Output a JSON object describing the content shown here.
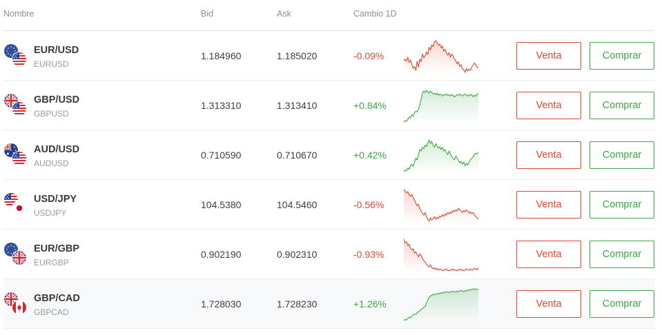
{
  "columns": {
    "name": "Nombre",
    "bid": "Bid",
    "ask": "Ask",
    "change": "Cambio 1D"
  },
  "buttons": {
    "sell": "Venta",
    "buy": "Comprar"
  },
  "colors": {
    "negative": "#e0462e",
    "positive": "#3ba843"
  },
  "rows": [
    {
      "pair": "EUR/USD",
      "symbol": "EURUSD",
      "bid": "1.184960",
      "ask": "1.185020",
      "change": "-0.09%",
      "trend": "down",
      "flags": [
        "eu",
        "us"
      ],
      "spark": [
        50,
        52,
        49,
        55,
        47,
        51,
        44,
        38,
        41,
        35,
        49,
        40,
        52,
        48,
        60,
        54,
        57,
        63,
        59,
        70,
        66,
        74,
        71,
        78,
        80,
        77,
        73,
        75,
        69,
        72,
        64,
        67,
        61,
        58,
        62,
        55,
        60,
        57,
        52,
        50,
        45,
        48,
        41,
        44,
        38,
        36,
        32,
        38,
        34,
        37,
        35,
        40,
        43,
        46,
        44,
        40,
        39
      ]
    },
    {
      "pair": "GBP/USD",
      "symbol": "GBPUSD",
      "bid": "1.313310",
      "ask": "1.313410",
      "change": "+0.84%",
      "trend": "up",
      "flags": [
        "gb",
        "us"
      ],
      "spark": [
        20,
        22,
        21,
        24,
        27,
        26,
        30,
        28,
        33,
        35,
        34,
        38,
        44,
        52,
        60,
        63,
        61,
        64,
        62,
        60,
        63,
        61,
        59,
        60,
        58,
        60,
        57,
        59,
        58,
        56,
        58,
        57,
        59,
        57,
        58,
        56,
        58,
        57,
        55,
        56,
        58,
        57,
        59,
        57,
        56,
        58,
        59,
        57,
        56,
        58,
        57,
        58,
        55,
        57,
        56,
        58,
        60
      ]
    },
    {
      "pair": "AUD/USD",
      "symbol": "AUDUSD",
      "bid": "0.710590",
      "ask": "0.710670",
      "change": "+0.42%",
      "trend": "up",
      "flags": [
        "au",
        "us"
      ],
      "spark": [
        22,
        24,
        23,
        27,
        25,
        30,
        32,
        29,
        35,
        40,
        38,
        45,
        52,
        50,
        55,
        53,
        58,
        56,
        61,
        65,
        60,
        63,
        58,
        55,
        60,
        57,
        54,
        56,
        52,
        55,
        50,
        52,
        48,
        45,
        50,
        46,
        42,
        40,
        38,
        43,
        41,
        37,
        34,
        36,
        32,
        35,
        30,
        33,
        31,
        35,
        38,
        40,
        42,
        45,
        47,
        46,
        48
      ]
    },
    {
      "pair": "USD/JPY",
      "symbol": "USDJPY",
      "bid": "104.5380",
      "ask": "104.5460",
      "change": "-0.56%",
      "trend": "down",
      "flags": [
        "us",
        "jp"
      ],
      "spark": [
        80,
        78,
        75,
        77,
        72,
        70,
        73,
        68,
        65,
        60,
        56,
        58,
        52,
        48,
        45,
        42,
        46,
        40,
        36,
        33,
        38,
        35,
        37,
        40,
        36,
        39,
        37,
        41,
        39,
        43,
        40,
        44,
        42,
        46,
        44,
        47,
        45,
        49,
        47,
        50,
        48,
        52,
        50,
        48,
        46,
        49,
        47,
        50,
        48,
        45,
        47,
        44,
        46,
        43,
        40,
        38,
        36
      ]
    },
    {
      "pair": "EUR/GBP",
      "symbol": "EURGBP",
      "bid": "0.902190",
      "ask": "0.902310",
      "change": "-0.93%",
      "trend": "down",
      "flags": [
        "eu",
        "gb"
      ],
      "spark": [
        80,
        74,
        76,
        70,
        72,
        66,
        63,
        65,
        58,
        60,
        56,
        52,
        57,
        54,
        50,
        46,
        44,
        40,
        38,
        36,
        40,
        35,
        33,
        35,
        32,
        34,
        31,
        33,
        32,
        30,
        32,
        31,
        33,
        31,
        30,
        32,
        31,
        33,
        31,
        32,
        30,
        31,
        33,
        31,
        32,
        30,
        31,
        33,
        32,
        31,
        33,
        31,
        32,
        34,
        33,
        32,
        35
      ]
    },
    {
      "pair": "GBP/CAD",
      "symbol": "GBPCAD",
      "bid": "1.728030",
      "ask": "1.728230",
      "change": "+1.26%",
      "trend": "up",
      "flags": [
        "gb",
        "ca"
      ],
      "spark": [
        20,
        22,
        21,
        24,
        26,
        25,
        28,
        30,
        32,
        31,
        34,
        36,
        38,
        40,
        42,
        44,
        46,
        52,
        58,
        62,
        65,
        66,
        68,
        67,
        69,
        68,
        70,
        69,
        71,
        70,
        72,
        71,
        73,
        72,
        71,
        73,
        72,
        74,
        73,
        72,
        74,
        73,
        74,
        75,
        74,
        73,
        75,
        74,
        76,
        75,
        77,
        76,
        78,
        77,
        78,
        77,
        76
      ]
    }
  ]
}
